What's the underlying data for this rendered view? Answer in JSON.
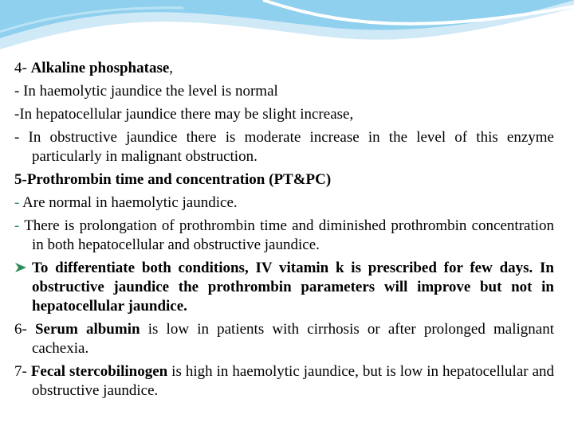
{
  "items": [
    {
      "runs": [
        "4- ",
        "Alkaline phosphatase",
        ","
      ]
    },
    {
      "runs": [
        "- In haemolytic jaundice the level is normal"
      ]
    },
    {
      "runs": [
        "-In hepatocellular jaundice there may be slight increase,"
      ]
    },
    {
      "runs": [
        "- In obstructive jaundice there is moderate increase in the level of this enzyme particularly in malignant obstruction."
      ]
    },
    {
      "runs": [
        "5-Prothrombin time and concentration (PT&PC)"
      ]
    },
    {
      "runs": [
        "- ",
        "Are normal in haemolytic jaundice."
      ]
    },
    {
      "runs": [
        "- ",
        "There is prolongation of prothrombin time and diminished prothrombin concentration in both hepatocellular and obstructive jaundice."
      ]
    },
    {
      "runs": [
        "To differentiate both conditions, IV vitamin k is prescribed for few days. In obstructive jaundice the prothrombin parameters will improve but not in hepatocellular jaundice."
      ]
    },
    {
      "runs": [
        "6- ",
        "Serum albumin",
        " is low in patients with cirrhosis or after prolonged malignant cachexia."
      ]
    },
    {
      "runs": [
        "7- ",
        "Fecal stercobilinogen",
        " is high in haemolytic jaundice, but is low in hepatocellular and obstructive jaundice."
      ]
    }
  ]
}
